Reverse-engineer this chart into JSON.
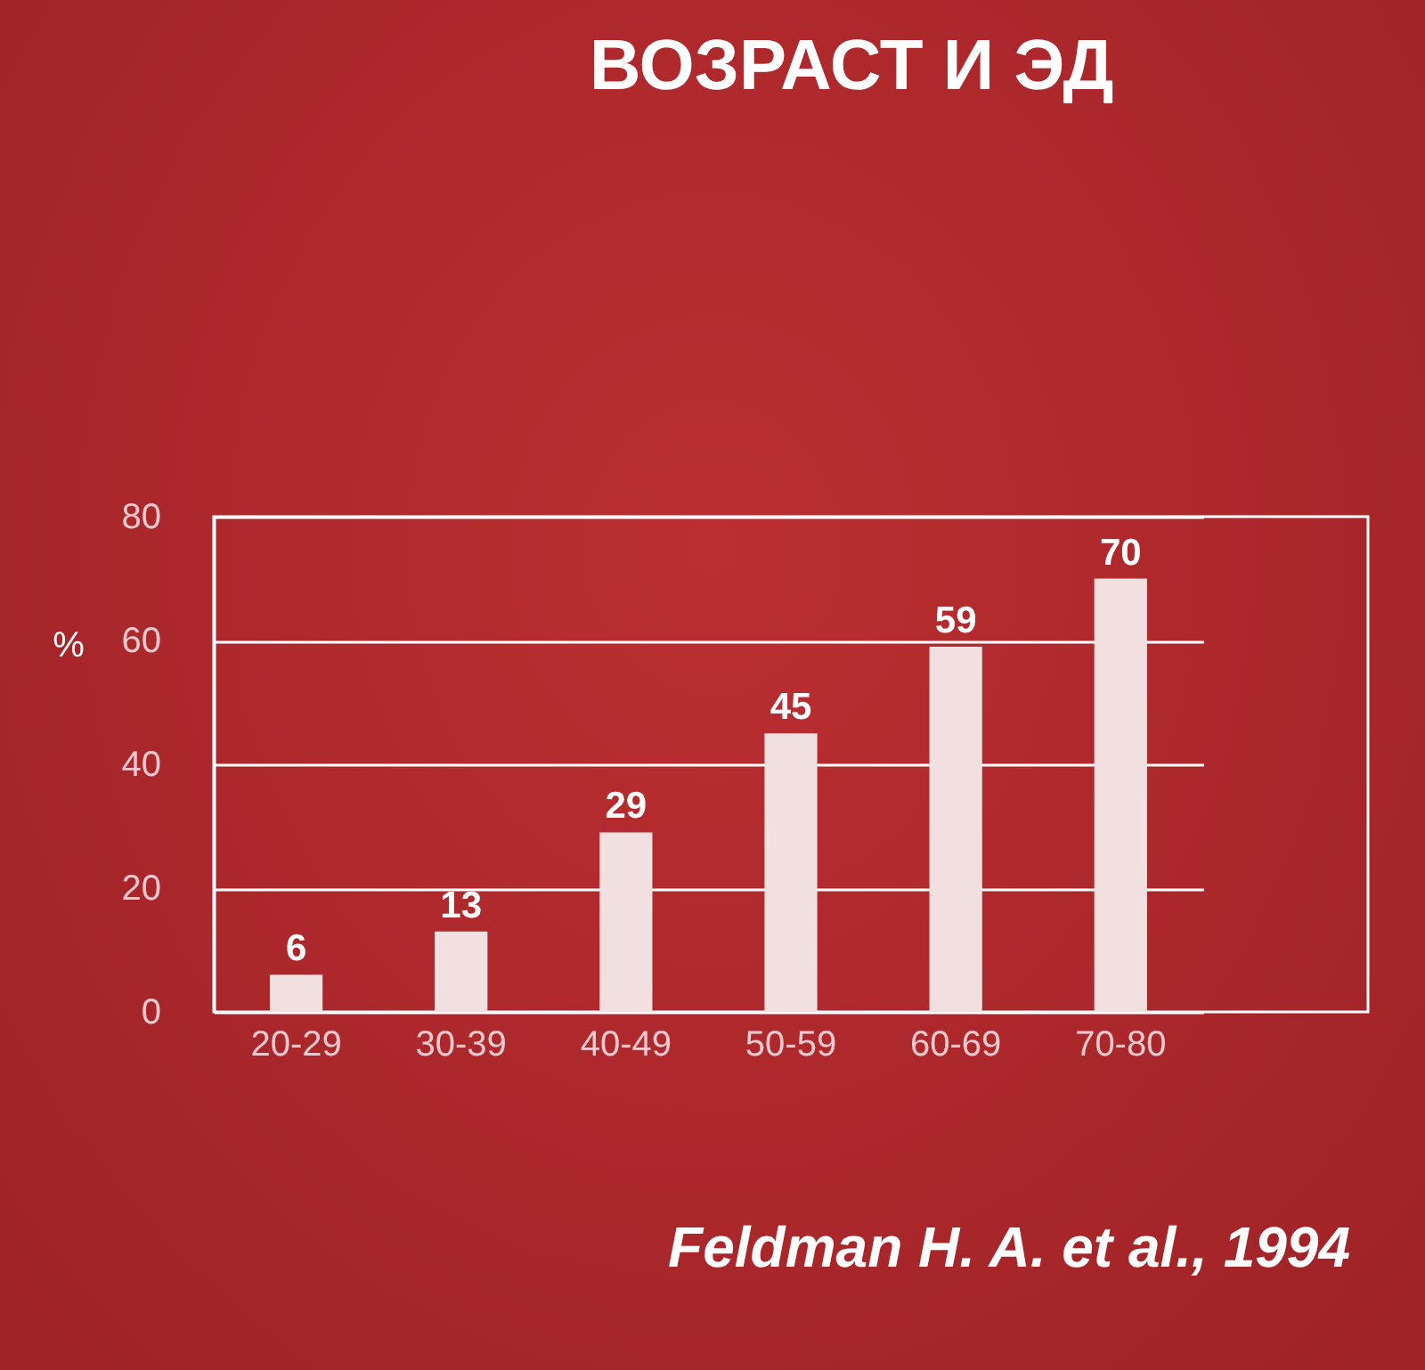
{
  "chart_data": {
    "type": "bar",
    "title": "ВОЗРАСТ И ЭД",
    "ylabel": "%",
    "categories": [
      "20-29",
      "30-39",
      "40-49",
      "50-59",
      "60-69",
      "70-80"
    ],
    "values": [
      6,
      13,
      29,
      45,
      59,
      70
    ],
    "color": "#f2dfe0",
    "ylim": [
      0,
      80
    ],
    "yticks": [
      0,
      20,
      40,
      60,
      80
    ],
    "grid": "y",
    "data_labels": true,
    "annotations": [
      "Feldman H. A. et al., 1994"
    ]
  }
}
